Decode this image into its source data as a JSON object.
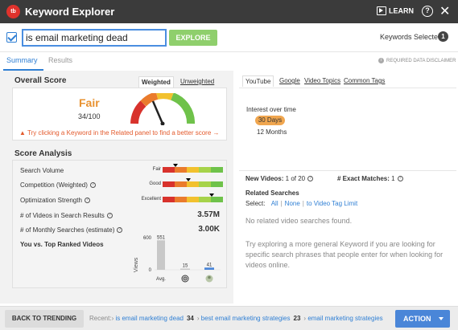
{
  "titlebar": {
    "logo": "tb",
    "title": "Keyword Explorer",
    "learn_label": "LEARN",
    "help_icon": "?",
    "close_icon": "✕"
  },
  "search": {
    "value": "is email marketing dead",
    "explore_label": "EXPLORE",
    "keywords_selected_label": "Keywords Selected",
    "keywords_selected_count": "1"
  },
  "tabs": {
    "summary": "Summary",
    "results": "Results",
    "disclaimer": "REQUIRED DATA DISCLAIMER"
  },
  "overall": {
    "title": "Overall Score",
    "weighted_tab": "Weighted",
    "unweighted_tab": "Unweighted",
    "rating": "Fair",
    "score": "34/100",
    "score_value": 34,
    "hint": "Try clicking a Keyword in the Related panel to find a better score →"
  },
  "analysis": {
    "title": "Score Analysis",
    "search_volume_label": "Search Volume",
    "search_volume_rating": "Fair",
    "competition_label": "Competition (Weighted)",
    "competition_rating": "Good",
    "optimization_label": "Optimization Strength",
    "optimization_rating": "Excellent",
    "videos_label": "# of Videos in Search Results",
    "videos_value": "3.57M",
    "monthly_label": "# of Monthly Searches (estimate)",
    "monthly_value": "3.00K",
    "top_ranked_label": "You vs. Top Ranked Videos",
    "chart_axis_label": "Views",
    "chart_axis_max": "600",
    "chart_axis_min": "0",
    "chart_bar_values": [
      "551",
      "15",
      "41"
    ],
    "chart_avg_label": "Avg."
  },
  "chart_data": {
    "type": "bar",
    "categories": [
      "Avg.",
      "target-icon",
      "avatar"
    ],
    "values": [
      551,
      15,
      41
    ],
    "ylabel": "Views",
    "ylim": [
      0,
      600
    ]
  },
  "right": {
    "tabs": [
      "YouTube",
      "Google",
      "Video Topics",
      "Common Tags"
    ],
    "interest_title": "Interest over time",
    "days30": "30 Days",
    "months12": "12 Months",
    "new_videos_label": "New Videos:",
    "new_videos_value": "1 of 20",
    "exact_matches_label": "# Exact Matches:",
    "exact_matches_value": "1",
    "related_title": "Related Searches",
    "select_label": "Select:",
    "select_all": "All",
    "select_none": "None",
    "select_tag_limit": "to Video Tag Limit",
    "no_related": "No related video searches found.",
    "tip": "Try exploring a more general Keyword if you are looking for specific search phrases that people enter for when looking for videos online."
  },
  "bottom": {
    "back_label": "BACK TO TRENDING",
    "recent_label": "Recent:",
    "recent_items": [
      {
        "text": "is email marketing dead",
        "score": "34"
      },
      {
        "text": "best email marketing strategies",
        "score": "23"
      },
      {
        "text": "email marketing strategies",
        "score": ""
      }
    ],
    "action_label": "ACTION"
  },
  "colors": {
    "accent": "#2f7fd4",
    "fair": "#e8912f",
    "explore": "#8fcf6c",
    "titlebar": "#3b3b3b"
  }
}
